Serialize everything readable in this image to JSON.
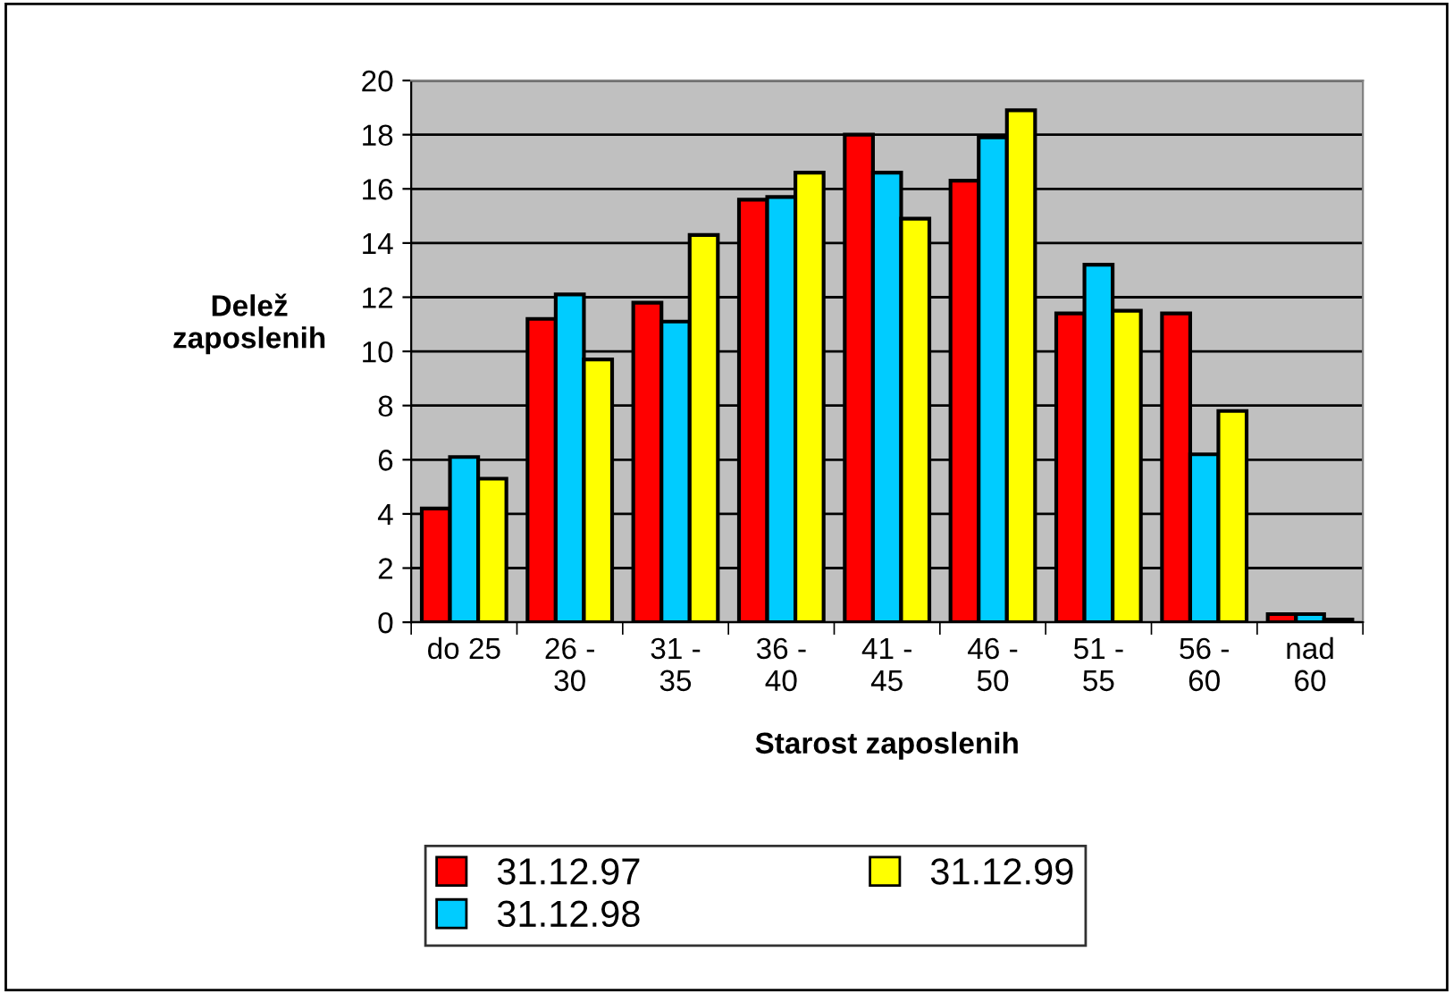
{
  "chart_data": {
    "type": "bar",
    "xlabel": "Starost zaposlenih",
    "ylabel": "Delež\nzaposlenih",
    "categories": [
      "do 25",
      "26 -\n30",
      "31 -\n35",
      "36 -\n40",
      "41 -\n45",
      "46 -\n50",
      "51 -\n55",
      "56 -\n60",
      "nad\n60"
    ],
    "series": [
      {
        "name": "31.12.97",
        "color": "#ff0000",
        "values": [
          4.2,
          11.2,
          11.8,
          15.6,
          18.0,
          16.3,
          11.4,
          11.4,
          0.3
        ]
      },
      {
        "name": "31.12.98",
        "color": "#00ccff",
        "values": [
          6.1,
          12.1,
          11.1,
          15.7,
          16.6,
          17.9,
          13.2,
          6.2,
          0.3
        ]
      },
      {
        "name": "31.12.99",
        "color": "#ffff00",
        "values": [
          5.3,
          9.7,
          14.3,
          16.6,
          14.9,
          18.9,
          11.5,
          7.8,
          0.1
        ]
      }
    ],
    "ylim": [
      0,
      20
    ],
    "yticks": [
      0,
      2,
      4,
      6,
      8,
      10,
      12,
      14,
      16,
      18,
      20
    ],
    "grid": "y",
    "legend": "bottom"
  }
}
